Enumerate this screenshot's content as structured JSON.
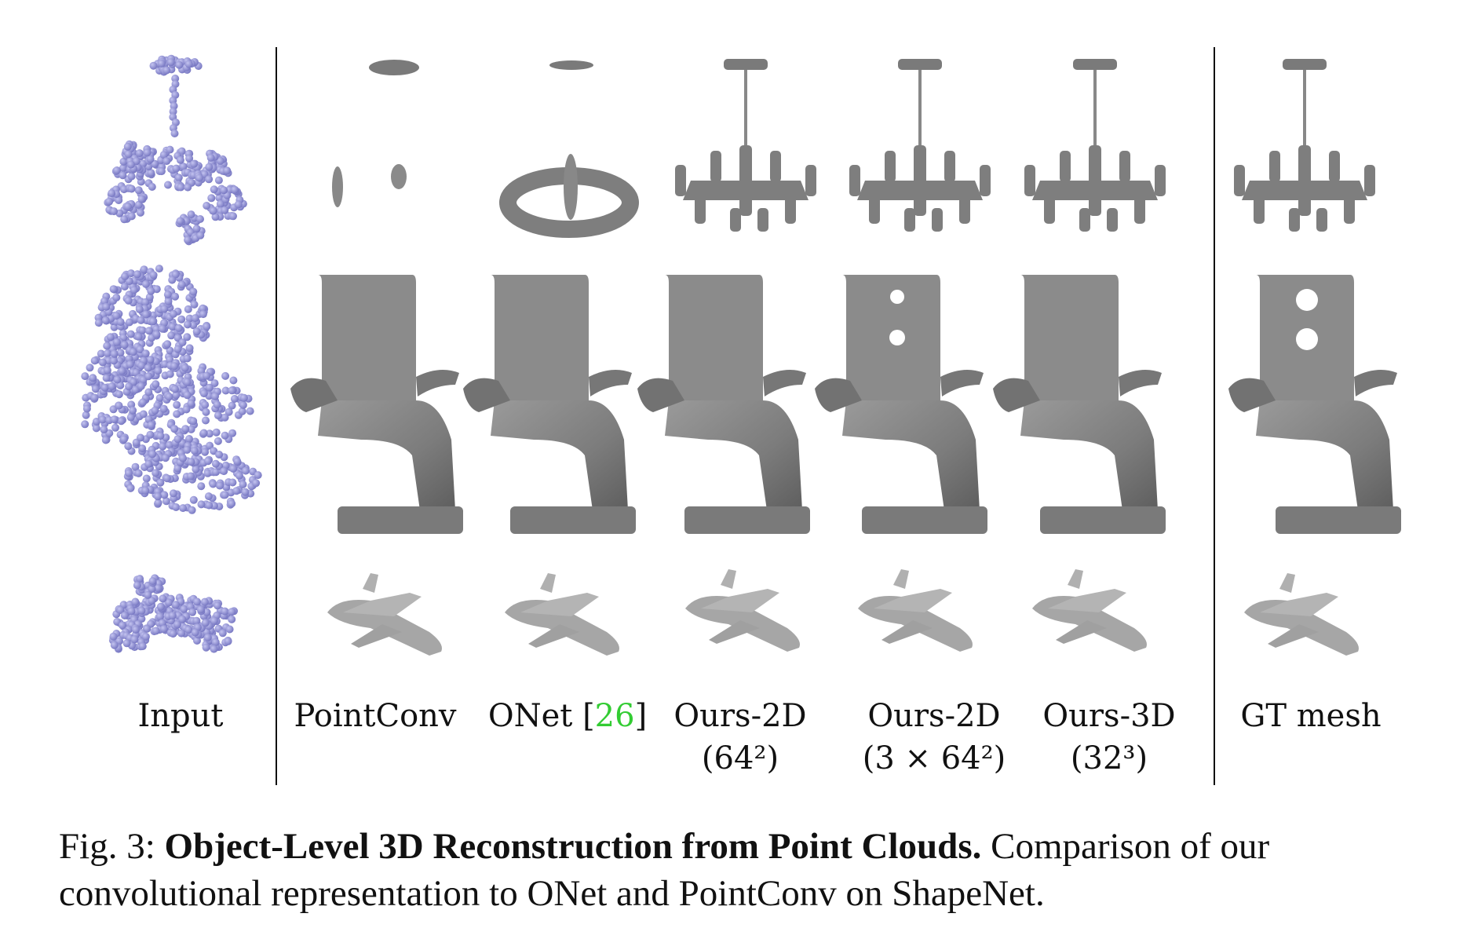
{
  "columns": [
    {
      "key": "input",
      "label": "Input",
      "sublabel": ""
    },
    {
      "key": "pointconv",
      "label": "PointConv",
      "sublabel": ""
    },
    {
      "key": "onet",
      "label": "ONet [",
      "cite": "26",
      "label_end": "]",
      "sublabel": ""
    },
    {
      "key": "ours2d",
      "label": "Ours-2D",
      "sublabel": "(64²)"
    },
    {
      "key": "ours2d3",
      "label": "Ours-2D",
      "sublabel": "(3 × 64²)"
    },
    {
      "key": "ours3d",
      "label": "Ours-3D",
      "sublabel": "(32³)"
    },
    {
      "key": "gt",
      "label": "GT mesh",
      "sublabel": ""
    }
  ],
  "rows": [
    "chandelier",
    "chair",
    "airplane"
  ],
  "colors": {
    "point_cloud": "#8e8ed6",
    "mesh": "#8a8a8a",
    "mesh_dark": "#6e6e6e",
    "citation": "#33cc33"
  },
  "caption": {
    "prefix": "Fig. 3: ",
    "title": "Object-Level 3D Reconstruction from Point Clouds.",
    "body": " Comparison of our convolutional representation to ONet and PointConv on ShapeNet."
  }
}
